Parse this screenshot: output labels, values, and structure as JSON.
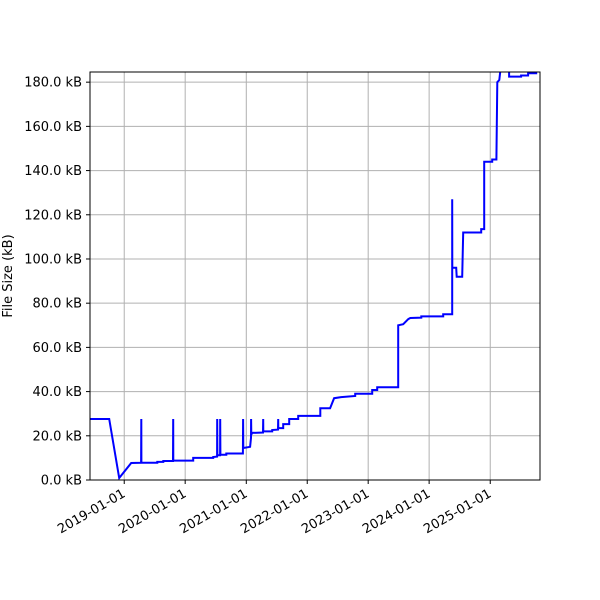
{
  "chart_data": {
    "type": "line",
    "title": "",
    "xlabel": "",
    "ylabel": "File Size (kB)",
    "xlim": [
      "2018-06-10",
      "2025-10-26"
    ],
    "ylim": [
      0,
      184.6
    ],
    "grid": true,
    "line_color": "#0000ff",
    "x_ticks": [
      "2019-01-01",
      "2020-01-01",
      "2021-01-01",
      "2022-01-01",
      "2023-01-01",
      "2024-01-01",
      "2025-01-01"
    ],
    "y_ticks": [
      0,
      20,
      40,
      60,
      80,
      100,
      120,
      140,
      160,
      180
    ],
    "y_tick_labels": [
      "0.0 kB",
      "20.0 kB",
      "40.0 kB",
      "60.0 kB",
      "80.0 kB",
      "100.0 kB",
      "120.0 kB",
      "140.0 kB",
      "160.0 kB",
      "180.0 kB"
    ],
    "series": [
      {
        "points": [
          [
            "2018-06-10",
            27.6
          ],
          [
            "2018-10-03",
            27.6
          ],
          [
            "2018-12-02",
            0.9
          ],
          [
            "2019-02-12",
            7.7
          ],
          [
            "2019-04-12",
            7.8
          ],
          [
            "2019-04-13",
            27.6
          ],
          [
            "2019-04-14",
            7.8
          ],
          [
            "2019-07-18",
            7.8
          ],
          [
            "2019-07-18",
            8.2
          ],
          [
            "2019-08-23",
            8.2
          ],
          [
            "2019-08-23",
            8.6
          ],
          [
            "2019-10-20",
            8.6
          ],
          [
            "2019-10-21",
            27.6
          ],
          [
            "2019-10-22",
            8.8
          ],
          [
            "2020-02-18",
            8.8
          ],
          [
            "2020-02-18",
            10.0
          ],
          [
            "2020-06-17",
            10.0
          ],
          [
            "2020-06-17",
            10.4
          ],
          [
            "2020-07-10",
            10.6
          ],
          [
            "2020-07-11",
            27.6
          ],
          [
            "2020-07-12",
            11.2
          ],
          [
            "2020-07-28",
            11.2
          ],
          [
            "2020-07-29",
            27.6
          ],
          [
            "2020-07-30",
            11.4
          ],
          [
            "2020-09-03",
            11.4
          ],
          [
            "2020-09-03",
            12.0
          ],
          [
            "2020-12-12",
            12.0
          ],
          [
            "2020-12-13",
            27.6
          ],
          [
            "2020-12-14",
            14.5
          ],
          [
            "2021-01-24",
            15.0
          ],
          [
            "2021-01-29",
            19.0
          ],
          [
            "2021-01-30",
            27.6
          ],
          [
            "2021-01-31",
            20.5
          ],
          [
            "2021-02-05",
            21.3
          ],
          [
            "2021-04-11",
            21.5
          ],
          [
            "2021-04-12",
            27.6
          ],
          [
            "2021-04-13",
            22.0
          ],
          [
            "2021-06-05",
            22.0
          ],
          [
            "2021-06-05",
            22.6
          ],
          [
            "2021-07-10",
            22.8
          ],
          [
            "2021-07-11",
            27.6
          ],
          [
            "2021-07-12",
            23.5
          ],
          [
            "2021-08-10",
            23.5
          ],
          [
            "2021-08-10",
            25.3
          ],
          [
            "2021-09-15",
            25.3
          ],
          [
            "2021-09-15",
            27.6
          ],
          [
            "2021-11-08",
            27.6
          ],
          [
            "2021-11-08",
            29.0
          ],
          [
            "2022-03-20",
            29.0
          ],
          [
            "2022-03-20",
            32.5
          ],
          [
            "2022-05-18",
            32.5
          ],
          [
            "2022-06-11",
            37.0
          ],
          [
            "2022-07-23",
            37.5
          ],
          [
            "2022-10-15",
            38.0
          ],
          [
            "2022-10-15",
            39.0
          ],
          [
            "2023-01-25",
            39.0
          ],
          [
            "2023-01-25",
            40.7
          ],
          [
            "2023-02-24",
            40.7
          ],
          [
            "2023-02-24",
            42.0
          ],
          [
            "2023-06-30",
            42.0
          ],
          [
            "2023-06-30",
            70.0
          ],
          [
            "2023-07-30",
            70.5
          ],
          [
            "2023-08-29",
            72.8
          ],
          [
            "2023-09-10",
            73.3
          ],
          [
            "2023-11-15",
            73.5
          ],
          [
            "2023-11-15",
            74.0
          ],
          [
            "2024-03-25",
            74.0
          ],
          [
            "2024-03-25",
            75.0
          ],
          [
            "2024-05-18",
            75.0
          ],
          [
            "2024-05-18",
            127.0
          ],
          [
            "2024-05-19",
            96.0
          ],
          [
            "2024-06-11",
            96.0
          ],
          [
            "2024-06-14",
            92.0
          ],
          [
            "2024-07-17",
            92.0
          ],
          [
            "2024-07-23",
            112.0
          ],
          [
            "2024-11-08",
            112.0
          ],
          [
            "2024-11-08",
            113.5
          ],
          [
            "2024-11-26",
            113.5
          ],
          [
            "2024-11-26",
            144.0
          ],
          [
            "2025-01-13",
            144.0
          ],
          [
            "2025-01-13",
            145.0
          ],
          [
            "2025-02-07",
            145.0
          ],
          [
            "2025-02-12",
            180.0
          ],
          [
            "2025-02-24",
            181.0
          ],
          [
            "2025-03-02",
            185.0
          ],
          [
            "2025-04-24",
            185.0
          ],
          [
            "2025-04-24",
            182.5
          ],
          [
            "2025-07-05",
            182.5
          ],
          [
            "2025-07-05",
            183.0
          ],
          [
            "2025-08-16",
            183.0
          ],
          [
            "2025-08-16",
            184.0
          ],
          [
            "2025-10-09",
            184.0
          ]
        ]
      }
    ]
  }
}
